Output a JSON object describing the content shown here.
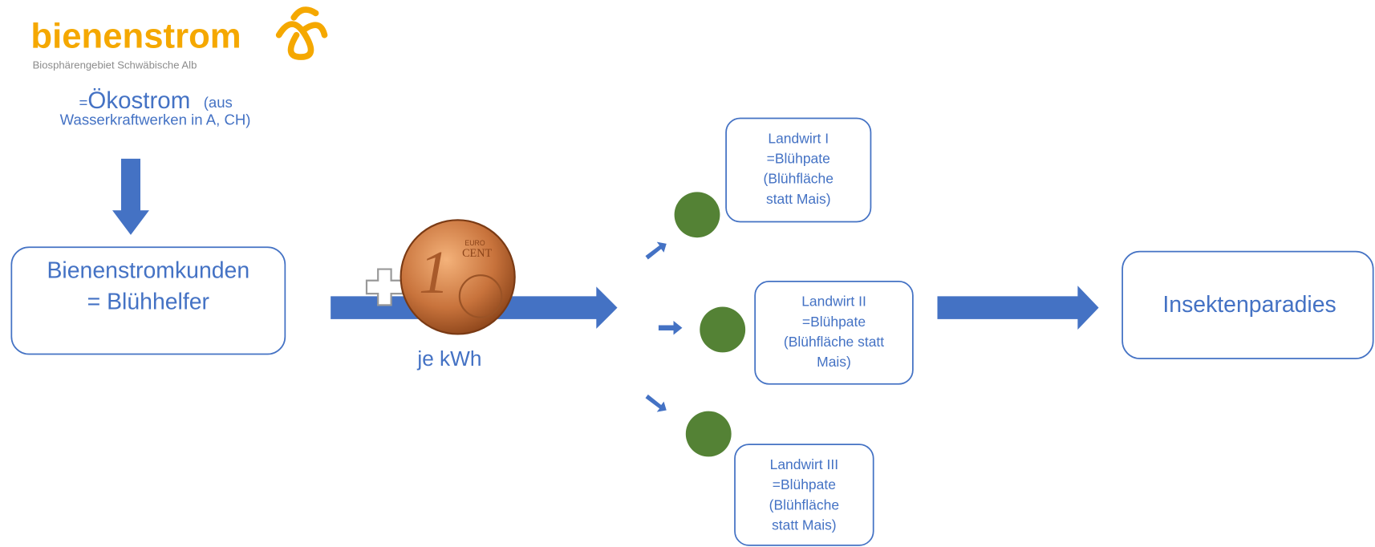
{
  "logo": {
    "name": "bienenstrom",
    "subtitle": "Biosphärengebiet Schwäbische Alb"
  },
  "source": {
    "line1": [
      "=",
      "Ökostrom",
      "(aus"
    ],
    "line2": "Wasserkraftwerken in A, CH)"
  },
  "customer": {
    "lines": [
      "Bienenstromkunden",
      "= Blühhelfer"
    ]
  },
  "coin": {
    "value": "1",
    "label": "CENT",
    "top": "EURO"
  },
  "per_unit": "je kWh",
  "farmers": [
    {
      "lines": [
        "Landwirt I",
        "=Blühpate",
        "(Blühfläche",
        "statt Mais)"
      ]
    },
    {
      "lines": [
        "Landwirt II",
        "=Blühpate",
        "(Blühfläche statt",
        "Mais)"
      ]
    },
    {
      "lines": [
        "Landwirt III",
        "=Blühpate",
        "(Blühfläche",
        "statt Mais)"
      ]
    }
  ],
  "result": "Insektenparadies"
}
